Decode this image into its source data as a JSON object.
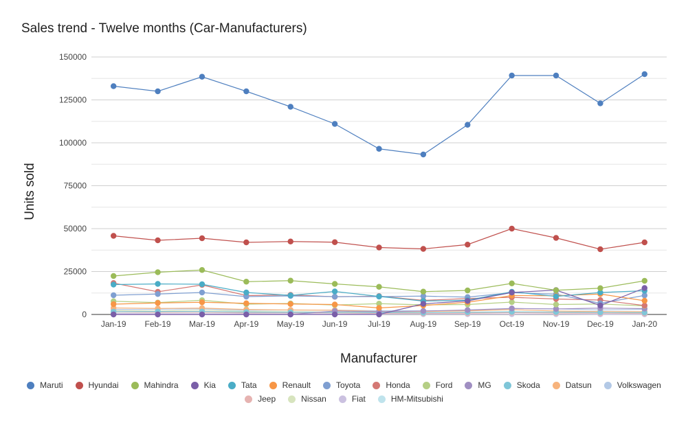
{
  "chart_data": {
    "type": "line",
    "title": "Sales trend - Twelve months (Car-Manufacturers)",
    "xlabel": "Manufacturer",
    "ylabel": "Units sold",
    "ylim": [
      0,
      150000
    ],
    "yticks": [
      0,
      25000,
      50000,
      75000,
      100000,
      125000,
      150000
    ],
    "ytick_labels": [
      "0",
      "25000",
      "50000",
      "75000",
      "100000",
      "125000",
      "150000"
    ],
    "categories": [
      "Jan-19",
      "Feb-19",
      "Mar-19",
      "Apr-19",
      "May-19",
      "Jun-19",
      "Jul-19",
      "Aug-19",
      "Sep-19",
      "Oct-19",
      "Nov-19",
      "Dec-19",
      "Jan-20"
    ],
    "grid": true,
    "legend_position": "bottom",
    "series": [
      {
        "name": "Maruti",
        "color": "#4e7fbf",
        "values": [
          133000,
          130000,
          138500,
          130000,
          121000,
          111000,
          96500,
          93200,
          110500,
          139200,
          139200,
          123000,
          140000
        ]
      },
      {
        "name": "Hyundai",
        "color": "#c0504d",
        "values": [
          45800,
          43200,
          44400,
          42000,
          42500,
          42100,
          39000,
          38200,
          40700,
          50000,
          44600,
          38000,
          42000
        ]
      },
      {
        "name": "Mahindra",
        "color": "#9bbb59",
        "values": [
          22400,
          24600,
          25900,
          19100,
          19700,
          17800,
          16100,
          13300,
          14000,
          18100,
          14100,
          15300,
          19600
        ]
      },
      {
        "name": "Kia",
        "color": "#7a5fa8",
        "values": [
          0,
          0,
          0,
          0,
          0,
          0,
          0,
          6200,
          7900,
          12800,
          14200,
          5200,
          15400
        ]
      },
      {
        "name": "Tata",
        "color": "#4aacc6",
        "values": [
          17400,
          17800,
          17600,
          12800,
          11100,
          13400,
          10500,
          7800,
          8300,
          13200,
          10500,
          12800,
          13800
        ]
      },
      {
        "name": "Renault",
        "color": "#f79646",
        "values": [
          6000,
          6700,
          7100,
          6500,
          6100,
          5800,
          3800,
          5200,
          7100,
          11000,
          10900,
          11900,
          8000
        ]
      },
      {
        "name": "Toyota",
        "color": "#7f9fd1",
        "values": [
          11200,
          11900,
          12800,
          10400,
          10800,
          10400,
          10400,
          10700,
          10100,
          12700,
          11800,
          6500,
          11100
        ]
      },
      {
        "name": "Honda",
        "color": "#d47874",
        "values": [
          18300,
          13200,
          17200,
          11000,
          11400,
          10300,
          10700,
          8200,
          9300,
          10000,
          9000,
          8400,
          5200
        ]
      },
      {
        "name": "Ford",
        "color": "#b5cf85",
        "values": [
          7700,
          6900,
          8300,
          6000,
          6400,
          5500,
          6300,
          5600,
          5800,
          7200,
          5800,
          6100,
          5000
        ]
      },
      {
        "name": "MG",
        "color": "#a08fc2",
        "values": [
          0,
          0,
          0,
          0,
          0,
          2000,
          1600,
          2000,
          2600,
          3500,
          3200,
          3700,
          3400
        ]
      },
      {
        "name": "Skoda",
        "color": "#7fc6d8",
        "values": [
          1600,
          1700,
          1700,
          1400,
          1300,
          1200,
          1100,
          1000,
          1300,
          1500,
          1400,
          1200,
          1100
        ]
      },
      {
        "name": "Datsun",
        "color": "#f7b37c",
        "values": [
          3800,
          3500,
          3700,
          2900,
          2600,
          2500,
          1700,
          1700,
          2100,
          2800,
          2000,
          1700,
          1600
        ]
      },
      {
        "name": "Volkswagen",
        "color": "#b3c9e6",
        "values": [
          2900,
          3000,
          3300,
          2400,
          2600,
          2500,
          2200,
          2100,
          2200,
          3400,
          3300,
          2600,
          3000
        ]
      },
      {
        "name": "Jeep",
        "color": "#e6b3b1",
        "values": [
          1400,
          1200,
          1300,
          900,
          1000,
          900,
          600,
          600,
          700,
          1000,
          800,
          700,
          600
        ]
      },
      {
        "name": "Nissan",
        "color": "#d7e4be",
        "values": [
          2300,
          2000,
          2600,
          1800,
          1600,
          1400,
          1300,
          1000,
          1100,
          1500,
          1300,
          1200,
          1100
        ]
      },
      {
        "name": "Fiat",
        "color": "#cbc1e0",
        "values": [
          500,
          400,
          400,
          300,
          300,
          200,
          200,
          200,
          200,
          200,
          200,
          100,
          100
        ]
      },
      {
        "name": "HM-Mitsubishi",
        "color": "#bfe3ec",
        "values": [
          300,
          300,
          300,
          200,
          200,
          200,
          200,
          200,
          200,
          200,
          200,
          200,
          200
        ]
      }
    ]
  }
}
